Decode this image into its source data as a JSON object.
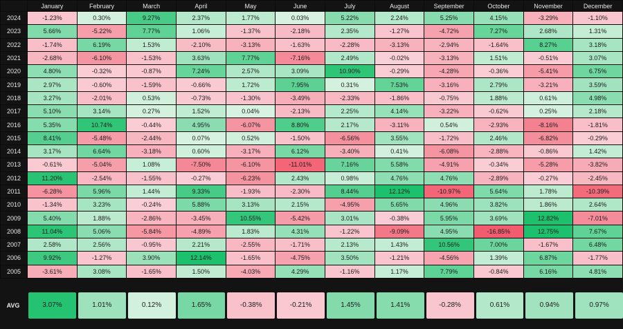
{
  "chart_data": {
    "type": "heatmap",
    "columns": [
      "January",
      "February",
      "March",
      "April",
      "May",
      "June",
      "July",
      "August",
      "September",
      "October",
      "November",
      "December"
    ],
    "rows": [
      {
        "year": "2024",
        "values": [
          -1.23,
          0.3,
          9.27,
          2.37,
          1.77,
          0.03,
          5.22,
          2.24,
          5.25,
          4.15,
          -3.29,
          -1.1
        ]
      },
      {
        "year": "2023",
        "values": [
          5.66,
          -5.22,
          7.77,
          1.06,
          -1.37,
          -2.18,
          2.35,
          -1.27,
          -4.72,
          7.27,
          2.68,
          1.31
        ]
      },
      {
        "year": "2022",
        "values": [
          -1.74,
          6.19,
          1.53,
          -2.1,
          -3.13,
          -1.63,
          -2.28,
          -3.13,
          -2.94,
          -1.64,
          8.27,
          3.18
        ]
      },
      {
        "year": "2021",
        "values": [
          -2.68,
          -6.1,
          -1.53,
          3.63,
          7.77,
          -7.16,
          2.49,
          -0.02,
          -3.13,
          1.51,
          -0.51,
          3.07
        ]
      },
      {
        "year": "2020",
        "values": [
          4.8,
          -0.32,
          -0.87,
          7.24,
          2.57,
          3.09,
          10.9,
          -0.29,
          -4.28,
          -0.36,
          -5.41,
          6.75
        ]
      },
      {
        "year": "2019",
        "values": [
          2.97,
          -0.6,
          -1.59,
          -0.66,
          1.72,
          7.95,
          0.31,
          7.53,
          -3.16,
          2.79,
          -3.21,
          3.59
        ]
      },
      {
        "year": "2018",
        "values": [
          3.27,
          -2.01,
          0.53,
          -0.73,
          -1.3,
          -3.49,
          -2.33,
          -1.86,
          -0.75,
          1.88,
          0.61,
          4.98
        ]
      },
      {
        "year": "2017",
        "values": [
          5.1,
          3.14,
          0.27,
          1.52,
          0.04,
          -2.13,
          2.25,
          4.14,
          -3.22,
          -0.62,
          0.25,
          2.18
        ]
      },
      {
        "year": "2016",
        "values": [
          5.35,
          10.74,
          -0.44,
          4.95,
          -6.07,
          8.8,
          2.17,
          -3.11,
          0.54,
          -2.93,
          -8.16,
          -1.81
        ]
      },
      {
        "year": "2015",
        "values": [
          8.41,
          -5.48,
          -2.44,
          0.07,
          0.52,
          -1.5,
          -6.56,
          3.55,
          -1.72,
          2.46,
          -6.82,
          -0.29
        ]
      },
      {
        "year": "2014",
        "values": [
          3.17,
          6.64,
          -3.18,
          0.6,
          -3.17,
          6.12,
          -3.4,
          0.41,
          -6.08,
          -2.88,
          -0.86,
          1.42
        ]
      },
      {
        "year": "2013",
        "values": [
          -0.61,
          -5.04,
          1.08,
          -7.5,
          -6.1,
          -11.01,
          7.16,
          5.58,
          -4.91,
          -0.34,
          -5.28,
          -3.82
        ]
      },
      {
        "year": "2012",
        "values": [
          11.2,
          -2.54,
          -1.55,
          -0.27,
          -6.23,
          2.43,
          0.98,
          4.76,
          4.76,
          -2.89,
          -0.27,
          -2.45
        ]
      },
      {
        "year": "2011",
        "values": [
          -6.28,
          5.96,
          1.44,
          9.33,
          -1.93,
          -2.3,
          8.44,
          12.12,
          -10.97,
          5.64,
          1.78,
          -10.39
        ]
      },
      {
        "year": "2010",
        "values": [
          -1.34,
          3.23,
          -0.24,
          5.88,
          3.13,
          2.15,
          -4.95,
          5.65,
          4.96,
          3.82,
          1.86,
          2.64
        ]
      },
      {
        "year": "2009",
        "values": [
          5.4,
          1.88,
          -2.86,
          -3.45,
          10.55,
          -5.42,
          3.01,
          -0.38,
          5.95,
          3.69,
          12.82,
          -7.01
        ]
      },
      {
        "year": "2008",
        "values": [
          11.04,
          5.06,
          -5.84,
          -4.89,
          1.83,
          4.31,
          -1.22,
          -9.09,
          4.95,
          -16.85,
          12.75,
          7.67
        ]
      },
      {
        "year": "2007",
        "values": [
          2.58,
          2.56,
          -0.95,
          2.21,
          -2.55,
          -1.71,
          2.13,
          1.43,
          10.56,
          7.0,
          -1.67,
          6.48
        ]
      },
      {
        "year": "2006",
        "values": [
          9.92,
          -1.27,
          3.9,
          12.14,
          -1.65,
          -4.75,
          3.5,
          -1.21,
          -4.56,
          1.39,
          6.87,
          -1.77
        ]
      },
      {
        "year": "2005",
        "values": [
          -3.61,
          3.08,
          -1.65,
          1.5,
          -4.03,
          4.29,
          -1.16,
          1.17,
          7.79,
          -0.84,
          6.16,
          4.81
        ]
      }
    ],
    "avg": {
      "label": "AVG",
      "values": [
        3.07,
        1.01,
        0.12,
        1.65,
        -0.38,
        -0.21,
        1.45,
        1.41,
        -0.28,
        0.61,
        0.94,
        0.97
      ]
    },
    "value_suffix": "%",
    "scale": {
      "main_max_abs": 12,
      "avg_max_abs": 3.2
    },
    "colors": {
      "background": "#131313",
      "grid_line": "#0b0b0b",
      "header_text": "#e8e8e8",
      "cell_text": "#1b1b1b",
      "positive_weak": "#d8f2e1",
      "positive_strong": "#1dc06c",
      "negative_weak": "#fad0d8",
      "negative_strong": "#f15c6e"
    }
  }
}
